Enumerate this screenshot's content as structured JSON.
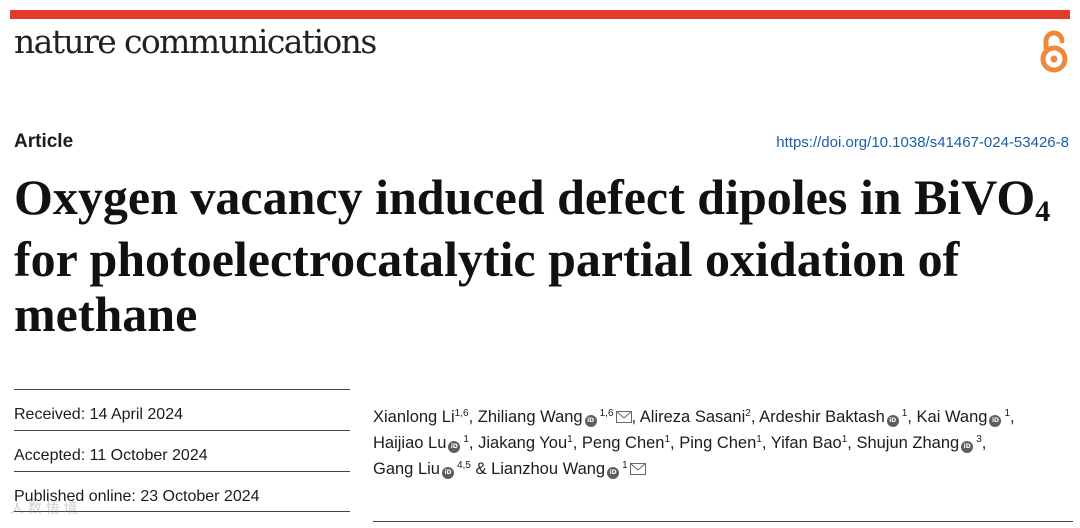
{
  "colors": {
    "accent_bar": "#e23b2c",
    "open_access_icon": "#f0883c",
    "doi_link": "#1a5fa8"
  },
  "header": {
    "journal_name": "nature communications",
    "open_access_icon": "open-lock-icon"
  },
  "article": {
    "type": "Article",
    "doi": "https://doi.org/10.1038/s41467-024-53426-8",
    "title_part1": "Oxygen vacancy induced defect dipoles in BiVO",
    "title_subscript": "4",
    "title_part2": " for photoelectrocatalytic partial oxidation of methane"
  },
  "dates": {
    "received": "Received: 14 April 2024",
    "accepted": "Accepted: 11 October 2024",
    "published": "Published online: 23 October 2024"
  },
  "authors": [
    {
      "name": "Xianlong Li",
      "sup": "1,6",
      "orcid": false,
      "email": false,
      "sep": ","
    },
    {
      "name": "Zhiliang Wang",
      "sup": "1,6",
      "orcid": true,
      "email": true,
      "sep": ","
    },
    {
      "name": "Alireza Sasani",
      "sup": "2",
      "orcid": false,
      "email": false,
      "sep": ","
    },
    {
      "name": "Ardeshir Baktash",
      "sup": "1",
      "orcid": true,
      "email": false,
      "sep": ","
    },
    {
      "name": "Kai Wang",
      "sup": "1",
      "orcid": true,
      "email": false,
      "sep": ","
    },
    {
      "name": "Haijiao Lu",
      "sup": "1",
      "orcid": true,
      "email": false,
      "sep": ","
    },
    {
      "name": "Jiakang You",
      "sup": "1",
      "orcid": false,
      "email": false,
      "sep": ","
    },
    {
      "name": "Peng Chen",
      "sup": "1",
      "orcid": false,
      "email": false,
      "sep": ","
    },
    {
      "name": "Ping Chen",
      "sup": "1",
      "orcid": false,
      "email": false,
      "sep": ","
    },
    {
      "name": "Yifan Bao",
      "sup": "1",
      "orcid": false,
      "email": false,
      "sep": ","
    },
    {
      "name": "Shujun Zhang",
      "sup": "3",
      "orcid": true,
      "email": false,
      "sep": ","
    },
    {
      "name": "Gang Liu",
      "sup": "4,5",
      "orcid": true,
      "email": false,
      "sep": " &"
    },
    {
      "name": "Lianzhou Wang",
      "sup": "1",
      "orcid": true,
      "email": true,
      "sep": ""
    }
  ],
  "orcid_label": "iD",
  "watermark": "人 数 悟 境"
}
